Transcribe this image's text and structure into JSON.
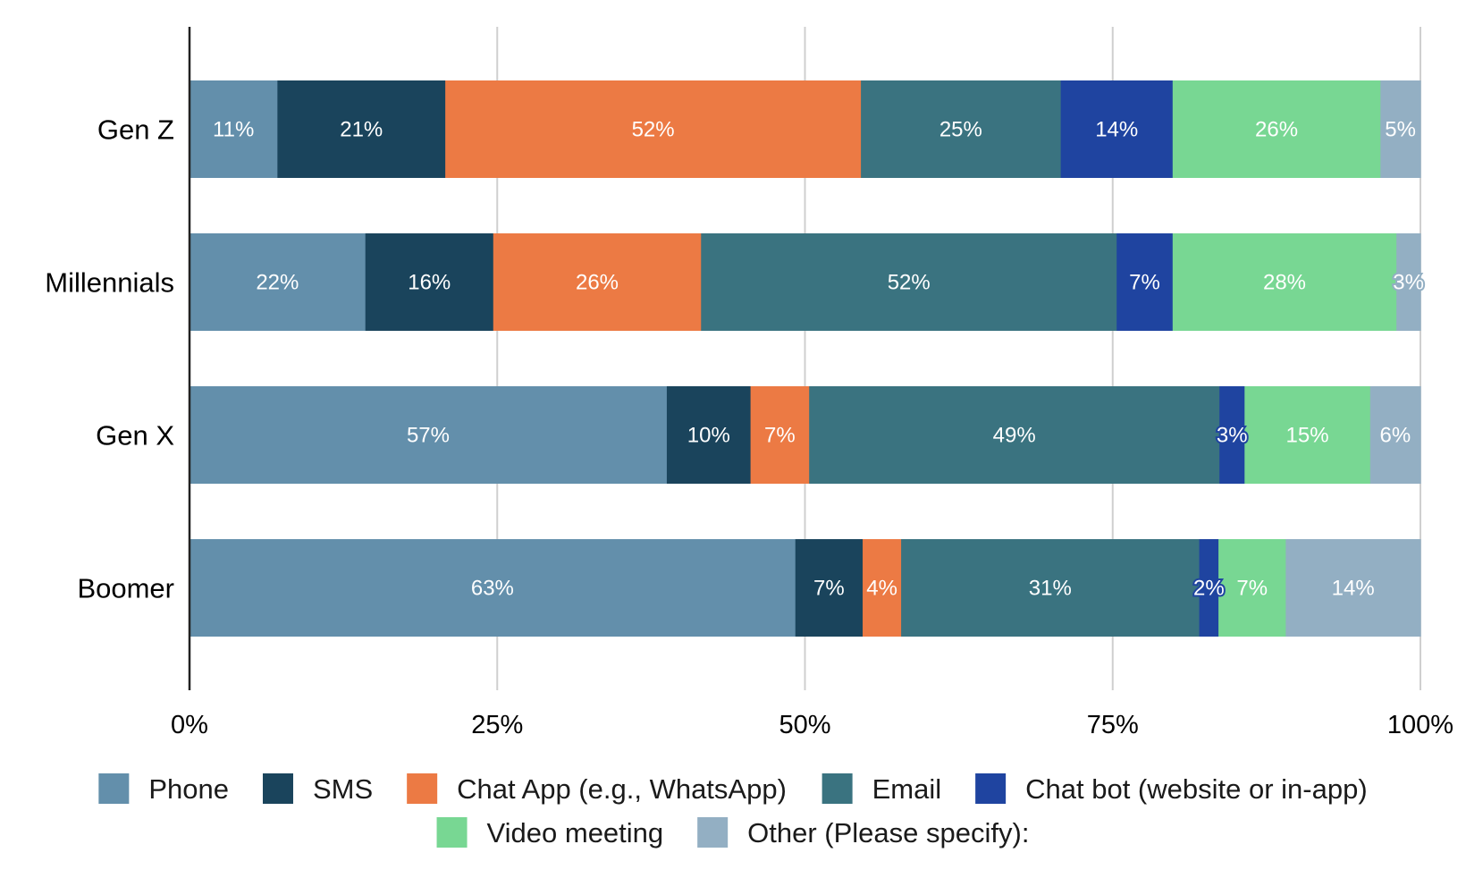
{
  "chart_data": {
    "type": "bar",
    "orientation": "horizontal",
    "stacked": "percent",
    "title": "",
    "xlabel": "",
    "ylabel": "",
    "xlim": [
      0,
      100
    ],
    "grid": true,
    "legend_position": "bottom",
    "categories": [
      "Gen Z",
      "Millennials",
      "Gen X",
      "Boomer"
    ],
    "x_ticks": [
      "0%",
      "25%",
      "50%",
      "75%",
      "100%"
    ],
    "series": [
      {
        "name": "Phone",
        "color": "#638fab",
        "values": [
          11,
          22,
          57,
          63
        ]
      },
      {
        "name": "SMS",
        "color": "#1a445c",
        "values": [
          21,
          16,
          10,
          7
        ]
      },
      {
        "name": "Chat App (e.g., WhatsApp)",
        "color": "#ec7a44",
        "values": [
          52,
          26,
          7,
          4
        ]
      },
      {
        "name": "Email",
        "color": "#3a7380",
        "values": [
          25,
          52,
          49,
          31
        ]
      },
      {
        "name": "Chat bot (website or in-app)",
        "color": "#1f44a0",
        "values": [
          14,
          7,
          3,
          2
        ]
      },
      {
        "name": "Video meeting",
        "color": "#78d793",
        "values": [
          26,
          28,
          15,
          7
        ]
      },
      {
        "name": "Other (Please specify):",
        "color": "#93afc3",
        "values": [
          5,
          3,
          6,
          14
        ]
      }
    ]
  }
}
